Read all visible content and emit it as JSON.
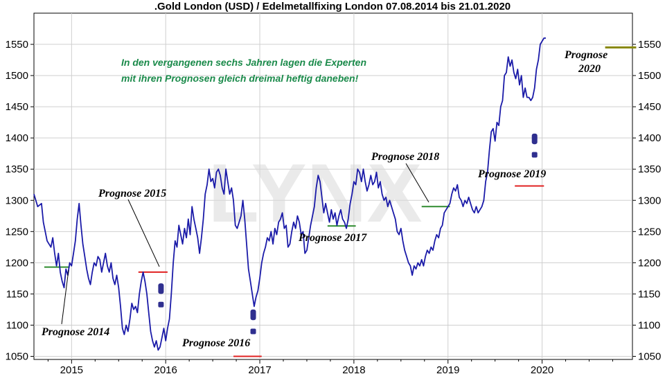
{
  "chart_data": {
    "type": "line",
    "title": ".Gold London (USD) / Edelmetallfixing London 07.08.2014 bis 21.01.2020",
    "xlabel": "",
    "ylabel": "",
    "ylim": [
      1045,
      1600
    ],
    "xlim": [
      2014.6,
      2020.96
    ],
    "y_ticks": [
      1050,
      1100,
      1150,
      1200,
      1250,
      1300,
      1350,
      1400,
      1450,
      1500,
      1550
    ],
    "x_ticks": [
      {
        "label": "2015",
        "value": 2015.0
      },
      {
        "label": "2016",
        "value": 2016.0
      },
      {
        "label": "2017",
        "value": 2017.0
      },
      {
        "label": "2018",
        "value": 2018.0
      },
      {
        "label": "2019",
        "value": 2019.0
      },
      {
        "label": "2020",
        "value": 2020.0
      }
    ],
    "grid": true,
    "watermark": "LYNX",
    "colors": {
      "line": "#1a1aa8",
      "forecast_green": "#2e8b2e",
      "forecast_red": "#e02020",
      "forecast_olive": "#8a8a10",
      "note": "#1a8a4a",
      "grid": "#cfcfcf",
      "markers": "#2f2f8f"
    },
    "note_lines": [
      "In den vergangenen sechs Jahren lagen die Experten",
      "mit ihren Prognosen gleich dreimal heftig daneben!"
    ],
    "series": [
      {
        "values": [
          [
            2014.6,
            1310
          ],
          [
            2014.64,
            1290
          ],
          [
            2014.68,
            1295
          ],
          [
            2014.7,
            1265
          ],
          [
            2014.74,
            1235
          ],
          [
            2014.78,
            1225
          ],
          [
            2014.8,
            1240
          ],
          [
            2014.82,
            1215
          ],
          [
            2014.84,
            1195
          ],
          [
            2014.86,
            1215
          ],
          [
            2014.88,
            1185
          ],
          [
            2014.9,
            1170
          ],
          [
            2014.92,
            1160
          ],
          [
            2014.94,
            1190
          ],
          [
            2014.96,
            1180
          ],
          [
            2014.98,
            1200
          ],
          [
            2015.0,
            1195
          ],
          [
            2015.02,
            1215
          ],
          [
            2015.04,
            1235
          ],
          [
            2015.06,
            1270
          ],
          [
            2015.08,
            1295
          ],
          [
            2015.1,
            1260
          ],
          [
            2015.12,
            1230
          ],
          [
            2015.14,
            1210
          ],
          [
            2015.16,
            1190
          ],
          [
            2015.18,
            1175
          ],
          [
            2015.2,
            1165
          ],
          [
            2015.22,
            1185
          ],
          [
            2015.24,
            1200
          ],
          [
            2015.26,
            1195
          ],
          [
            2015.28,
            1210
          ],
          [
            2015.3,
            1205
          ],
          [
            2015.32,
            1185
          ],
          [
            2015.34,
            1200
          ],
          [
            2015.36,
            1215
          ],
          [
            2015.38,
            1195
          ],
          [
            2015.4,
            1185
          ],
          [
            2015.42,
            1200
          ],
          [
            2015.44,
            1175
          ],
          [
            2015.46,
            1165
          ],
          [
            2015.48,
            1180
          ],
          [
            2015.5,
            1160
          ],
          [
            2015.52,
            1130
          ],
          [
            2015.54,
            1095
          ],
          [
            2015.56,
            1085
          ],
          [
            2015.58,
            1100
          ],
          [
            2015.6,
            1090
          ],
          [
            2015.62,
            1110
          ],
          [
            2015.64,
            1135
          ],
          [
            2015.66,
            1125
          ],
          [
            2015.68,
            1130
          ],
          [
            2015.7,
            1120
          ],
          [
            2015.72,
            1150
          ],
          [
            2015.74,
            1170
          ],
          [
            2015.76,
            1185
          ],
          [
            2015.78,
            1170
          ],
          [
            2015.8,
            1150
          ],
          [
            2015.82,
            1120
          ],
          [
            2015.84,
            1090
          ],
          [
            2015.86,
            1075
          ],
          [
            2015.88,
            1065
          ],
          [
            2015.9,
            1075
          ],
          [
            2015.92,
            1060
          ],
          [
            2015.94,
            1065
          ],
          [
            2015.96,
            1080
          ],
          [
            2015.98,
            1095
          ],
          [
            2016.0,
            1075
          ],
          [
            2016.02,
            1095
          ],
          [
            2016.04,
            1110
          ],
          [
            2016.06,
            1150
          ],
          [
            2016.08,
            1200
          ],
          [
            2016.1,
            1235
          ],
          [
            2016.12,
            1225
          ],
          [
            2016.14,
            1260
          ],
          [
            2016.16,
            1245
          ],
          [
            2016.18,
            1230
          ],
          [
            2016.2,
            1255
          ],
          [
            2016.22,
            1240
          ],
          [
            2016.24,
            1270
          ],
          [
            2016.26,
            1245
          ],
          [
            2016.28,
            1290
          ],
          [
            2016.3,
            1270
          ],
          [
            2016.32,
            1255
          ],
          [
            2016.34,
            1240
          ],
          [
            2016.36,
            1215
          ],
          [
            2016.38,
            1240
          ],
          [
            2016.4,
            1270
          ],
          [
            2016.42,
            1310
          ],
          [
            2016.44,
            1325
          ],
          [
            2016.46,
            1350
          ],
          [
            2016.48,
            1330
          ],
          [
            2016.5,
            1335
          ],
          [
            2016.52,
            1320
          ],
          [
            2016.54,
            1345
          ],
          [
            2016.56,
            1350
          ],
          [
            2016.58,
            1340
          ],
          [
            2016.6,
            1320
          ],
          [
            2016.62,
            1310
          ],
          [
            2016.64,
            1350
          ],
          [
            2016.66,
            1330
          ],
          [
            2016.68,
            1310
          ],
          [
            2016.7,
            1320
          ],
          [
            2016.72,
            1300
          ],
          [
            2016.74,
            1260
          ],
          [
            2016.76,
            1255
          ],
          [
            2016.78,
            1265
          ],
          [
            2016.8,
            1275
          ],
          [
            2016.82,
            1300
          ],
          [
            2016.84,
            1270
          ],
          [
            2016.86,
            1230
          ],
          [
            2016.88,
            1190
          ],
          [
            2016.9,
            1170
          ],
          [
            2016.92,
            1150
          ],
          [
            2016.94,
            1130
          ],
          [
            2016.96,
            1145
          ],
          [
            2016.98,
            1155
          ],
          [
            2017.0,
            1175
          ],
          [
            2017.02,
            1200
          ],
          [
            2017.04,
            1215
          ],
          [
            2017.06,
            1225
          ],
          [
            2017.08,
            1240
          ],
          [
            2017.1,
            1235
          ],
          [
            2017.12,
            1250
          ],
          [
            2017.14,
            1230
          ],
          [
            2017.16,
            1255
          ],
          [
            2017.18,
            1245
          ],
          [
            2017.2,
            1265
          ],
          [
            2017.22,
            1270
          ],
          [
            2017.24,
            1280
          ],
          [
            2017.26,
            1255
          ],
          [
            2017.28,
            1260
          ],
          [
            2017.3,
            1225
          ],
          [
            2017.32,
            1230
          ],
          [
            2017.34,
            1250
          ],
          [
            2017.36,
            1265
          ],
          [
            2017.38,
            1255
          ],
          [
            2017.4,
            1275
          ],
          [
            2017.42,
            1265
          ],
          [
            2017.44,
            1245
          ],
          [
            2017.46,
            1250
          ],
          [
            2017.48,
            1215
          ],
          [
            2017.5,
            1220
          ],
          [
            2017.52,
            1240
          ],
          [
            2017.54,
            1260
          ],
          [
            2017.56,
            1275
          ],
          [
            2017.58,
            1290
          ],
          [
            2017.6,
            1320
          ],
          [
            2017.62,
            1340
          ],
          [
            2017.64,
            1330
          ],
          [
            2017.66,
            1305
          ],
          [
            2017.68,
            1280
          ],
          [
            2017.7,
            1295
          ],
          [
            2017.72,
            1280
          ],
          [
            2017.74,
            1265
          ],
          [
            2017.76,
            1285
          ],
          [
            2017.78,
            1270
          ],
          [
            2017.8,
            1280
          ],
          [
            2017.82,
            1260
          ],
          [
            2017.84,
            1275
          ],
          [
            2017.86,
            1285
          ],
          [
            2017.88,
            1270
          ],
          [
            2017.9,
            1265
          ],
          [
            2017.92,
            1255
          ],
          [
            2017.94,
            1270
          ],
          [
            2017.96,
            1295
          ],
          [
            2017.98,
            1310
          ],
          [
            2018.0,
            1330
          ],
          [
            2018.02,
            1325
          ],
          [
            2018.04,
            1350
          ],
          [
            2018.06,
            1345
          ],
          [
            2018.08,
            1330
          ],
          [
            2018.1,
            1350
          ],
          [
            2018.12,
            1330
          ],
          [
            2018.14,
            1315
          ],
          [
            2018.16,
            1325
          ],
          [
            2018.18,
            1340
          ],
          [
            2018.2,
            1325
          ],
          [
            2018.22,
            1330
          ],
          [
            2018.24,
            1345
          ],
          [
            2018.26,
            1320
          ],
          [
            2018.28,
            1330
          ],
          [
            2018.3,
            1310
          ],
          [
            2018.32,
            1300
          ],
          [
            2018.34,
            1305
          ],
          [
            2018.36,
            1290
          ],
          [
            2018.38,
            1300
          ],
          [
            2018.4,
            1290
          ],
          [
            2018.42,
            1280
          ],
          [
            2018.44,
            1270
          ],
          [
            2018.46,
            1250
          ],
          [
            2018.48,
            1245
          ],
          [
            2018.5,
            1255
          ],
          [
            2018.52,
            1235
          ],
          [
            2018.54,
            1220
          ],
          [
            2018.56,
            1210
          ],
          [
            2018.58,
            1200
          ],
          [
            2018.6,
            1195
          ],
          [
            2018.62,
            1180
          ],
          [
            2018.64,
            1195
          ],
          [
            2018.66,
            1190
          ],
          [
            2018.68,
            1200
          ],
          [
            2018.7,
            1195
          ],
          [
            2018.72,
            1205
          ],
          [
            2018.74,
            1195
          ],
          [
            2018.76,
            1210
          ],
          [
            2018.78,
            1220
          ],
          [
            2018.8,
            1215
          ],
          [
            2018.82,
            1225
          ],
          [
            2018.84,
            1220
          ],
          [
            2018.86,
            1235
          ],
          [
            2018.88,
            1245
          ],
          [
            2018.9,
            1240
          ],
          [
            2018.92,
            1255
          ],
          [
            2018.94,
            1260
          ],
          [
            2018.96,
            1280
          ],
          [
            2018.98,
            1285
          ],
          [
            2019.0,
            1290
          ],
          [
            2019.02,
            1295
          ],
          [
            2019.04,
            1310
          ],
          [
            2019.06,
            1320
          ],
          [
            2019.08,
            1315
          ],
          [
            2019.1,
            1325
          ],
          [
            2019.12,
            1305
          ],
          [
            2019.14,
            1300
          ],
          [
            2019.16,
            1290
          ],
          [
            2019.18,
            1300
          ],
          [
            2019.2,
            1295
          ],
          [
            2019.22,
            1305
          ],
          [
            2019.24,
            1295
          ],
          [
            2019.26,
            1285
          ],
          [
            2019.28,
            1280
          ],
          [
            2019.3,
            1290
          ],
          [
            2019.32,
            1280
          ],
          [
            2019.34,
            1285
          ],
          [
            2019.36,
            1290
          ],
          [
            2019.38,
            1300
          ],
          [
            2019.4,
            1330
          ],
          [
            2019.42,
            1345
          ],
          [
            2019.44,
            1380
          ],
          [
            2019.46,
            1410
          ],
          [
            2019.48,
            1415
          ],
          [
            2019.5,
            1395
          ],
          [
            2019.52,
            1425
          ],
          [
            2019.54,
            1420
          ],
          [
            2019.56,
            1450
          ],
          [
            2019.58,
            1460
          ],
          [
            2019.6,
            1500
          ],
          [
            2019.62,
            1505
          ],
          [
            2019.64,
            1530
          ],
          [
            2019.66,
            1515
          ],
          [
            2019.68,
            1525
          ],
          [
            2019.7,
            1505
          ],
          [
            2019.72,
            1495
          ],
          [
            2019.74,
            1510
          ],
          [
            2019.76,
            1485
          ],
          [
            2019.78,
            1500
          ],
          [
            2019.8,
            1465
          ],
          [
            2019.82,
            1480
          ],
          [
            2019.84,
            1465
          ],
          [
            2019.86,
            1465
          ],
          [
            2019.88,
            1460
          ],
          [
            2019.9,
            1465
          ],
          [
            2019.92,
            1480
          ],
          [
            2019.94,
            1510
          ],
          [
            2019.96,
            1525
          ],
          [
            2019.98,
            1550
          ],
          [
            2020.0,
            1555
          ],
          [
            2020.02,
            1560
          ],
          [
            2020.04,
            1560
          ]
        ]
      }
    ],
    "forecasts": [
      {
        "label": "Prognose 2014",
        "x1": 2014.71,
        "x2": 2014.98,
        "y": 1193,
        "color": "#2e8b2e"
      },
      {
        "label": "Prognose 2015",
        "x1": 2015.71,
        "x2": 2016.02,
        "y": 1185,
        "color": "#e02020"
      },
      {
        "label": "Prognose 2016",
        "x1": 2016.72,
        "x2": 2017.02,
        "y": 1050,
        "color": "#e02020"
      },
      {
        "label": "Prognose 2017",
        "x1": 2017.72,
        "x2": 2018.02,
        "y": 1259,
        "color": "#2e8b2e"
      },
      {
        "label": "Prognose 2018",
        "x1": 2018.72,
        "x2": 2019.02,
        "y": 1290,
        "color": "#2e8b2e"
      },
      {
        "label": "Prognose 2019",
        "x1": 2019.71,
        "x2": 2020.02,
        "y": 1323,
        "color": "#e02020"
      },
      {
        "label": "Prognose 2020",
        "x1": 2020.67,
        "x2": 2021.0,
        "y": 1545,
        "color": "#8a8a10"
      }
    ]
  }
}
